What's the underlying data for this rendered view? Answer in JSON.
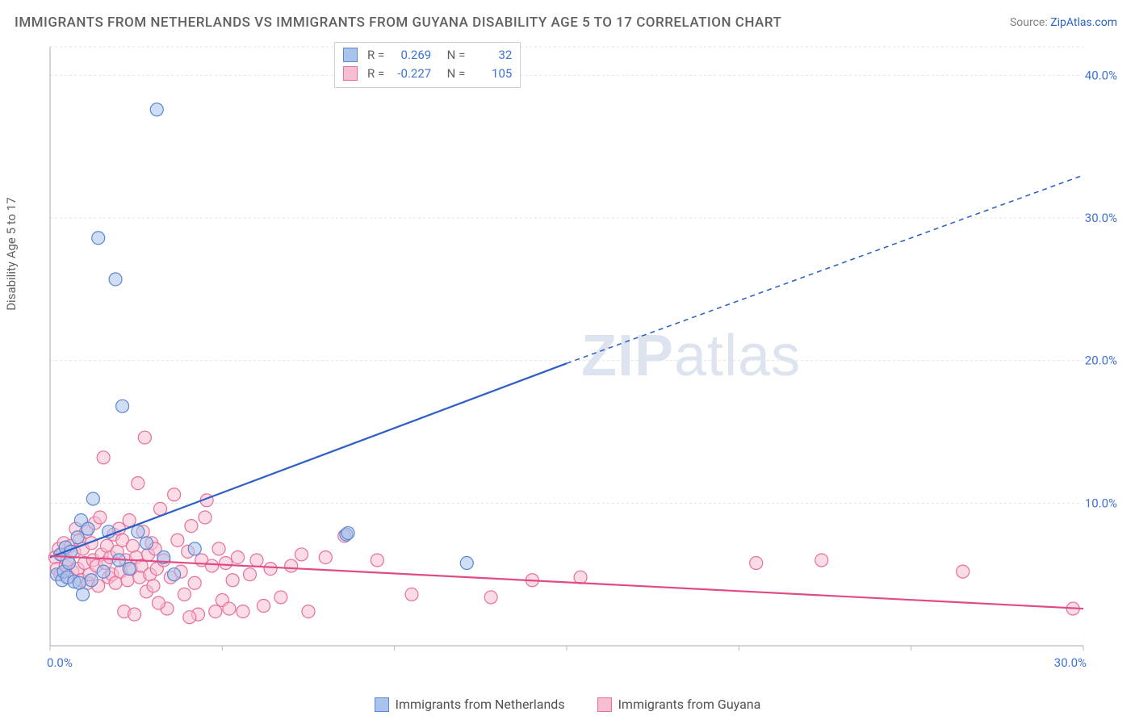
{
  "title": "IMMIGRANTS FROM NETHERLANDS VS IMMIGRANTS FROM GUYANA DISABILITY AGE 5 TO 17 CORRELATION CHART",
  "source": {
    "label": "Source: ",
    "link": "ZipAtlas.com"
  },
  "ylabel": "Disability Age 5 to 17",
  "watermark": {
    "bold": "ZIP",
    "light": "atlas"
  },
  "chart": {
    "type": "scatter",
    "xlim": [
      0,
      30
    ],
    "ylim": [
      0,
      42
    ],
    "x_ticks": [
      0,
      30
    ],
    "x_tick_labels": [
      "0.0%",
      "30.0%"
    ],
    "y_ticks": [
      10,
      20,
      30,
      40
    ],
    "y_tick_labels": [
      "10.0%",
      "20.0%",
      "30.0%",
      "40.0%"
    ],
    "grid_color": "#e3e3e3",
    "axis_color": "#b9b9b9",
    "background_color": "#ffffff",
    "series": [
      {
        "name": "Immigrants from Netherlands",
        "color_fill": "#a8c3ec",
        "color_stroke": "#5b87d1",
        "fill_opacity": 0.55,
        "marker_radius": 8,
        "R": "0.269",
        "N": "32",
        "stat_color": "#3d73d8",
        "trend": {
          "x1": 0,
          "y1": 6.2,
          "x2_solid": 15,
          "y2_solid": 19.8,
          "x2": 30,
          "y2": 33.0,
          "color": "#2b5fc7",
          "width": 2.2
        },
        "points": [
          [
            0.2,
            5.0
          ],
          [
            0.3,
            6.4
          ],
          [
            0.35,
            4.6
          ],
          [
            0.4,
            5.2
          ],
          [
            0.45,
            6.9
          ],
          [
            0.5,
            4.8
          ],
          [
            0.55,
            5.8
          ],
          [
            0.6,
            6.6
          ],
          [
            0.7,
            4.5
          ],
          [
            0.8,
            7.6
          ],
          [
            0.85,
            4.4
          ],
          [
            0.9,
            8.8
          ],
          [
            0.95,
            3.6
          ],
          [
            1.1,
            8.2
          ],
          [
            1.2,
            4.6
          ],
          [
            1.25,
            10.3
          ],
          [
            1.4,
            28.6
          ],
          [
            1.55,
            5.2
          ],
          [
            1.7,
            8.0
          ],
          [
            1.9,
            25.7
          ],
          [
            2.0,
            6.0
          ],
          [
            2.1,
            16.8
          ],
          [
            2.3,
            5.4
          ],
          [
            2.55,
            8.0
          ],
          [
            2.8,
            7.2
          ],
          [
            3.1,
            37.6
          ],
          [
            3.3,
            6.2
          ],
          [
            3.6,
            5.0
          ],
          [
            4.2,
            6.8
          ],
          [
            8.6,
            7.8
          ],
          [
            8.65,
            7.9
          ],
          [
            12.1,
            5.8
          ]
        ]
      },
      {
        "name": "Immigrants from Guyana",
        "color_fill": "#f7bed1",
        "color_stroke": "#e76f9a",
        "fill_opacity": 0.55,
        "marker_radius": 8,
        "R": "-0.227",
        "N": "105",
        "stat_color": "#3d73d8",
        "trend": {
          "x1": 0,
          "y1": 6.3,
          "x2_solid": 30,
          "y2_solid": 2.6,
          "x2": 30,
          "y2": 2.6,
          "color": "#e04b84",
          "width": 2.2
        },
        "points": [
          [
            0.15,
            6.2
          ],
          [
            0.2,
            5.4
          ],
          [
            0.25,
            6.8
          ],
          [
            0.3,
            5.0
          ],
          [
            0.35,
            6.4
          ],
          [
            0.4,
            7.2
          ],
          [
            0.45,
            5.6
          ],
          [
            0.5,
            6.0
          ],
          [
            0.55,
            4.8
          ],
          [
            0.6,
            7.0
          ],
          [
            0.65,
            5.2
          ],
          [
            0.7,
            6.6
          ],
          [
            0.75,
            8.2
          ],
          [
            0.8,
            5.4
          ],
          [
            0.85,
            7.4
          ],
          [
            0.9,
            4.6
          ],
          [
            0.95,
            6.8
          ],
          [
            1.0,
            5.8
          ],
          [
            1.05,
            8.0
          ],
          [
            1.1,
            4.4
          ],
          [
            1.15,
            5.0
          ],
          [
            1.2,
            7.2
          ],
          [
            1.25,
            6.0
          ],
          [
            1.3,
            8.6
          ],
          [
            1.35,
            5.6
          ],
          [
            1.4,
            4.2
          ],
          [
            1.45,
            9.0
          ],
          [
            1.5,
            6.4
          ],
          [
            1.55,
            13.2
          ],
          [
            1.6,
            5.8
          ],
          [
            1.65,
            7.0
          ],
          [
            1.7,
            4.8
          ],
          [
            1.75,
            6.2
          ],
          [
            1.8,
            5.0
          ],
          [
            1.85,
            7.8
          ],
          [
            1.9,
            4.4
          ],
          [
            1.95,
            6.6
          ],
          [
            2.0,
            8.2
          ],
          [
            2.05,
            5.2
          ],
          [
            2.1,
            7.4
          ],
          [
            2.15,
            2.4
          ],
          [
            2.2,
            6.0
          ],
          [
            2.25,
            4.6
          ],
          [
            2.3,
            8.8
          ],
          [
            2.35,
            5.4
          ],
          [
            2.4,
            7.0
          ],
          [
            2.45,
            2.2
          ],
          [
            2.5,
            6.2
          ],
          [
            2.55,
            11.4
          ],
          [
            2.6,
            4.8
          ],
          [
            2.65,
            5.6
          ],
          [
            2.7,
            8.0
          ],
          [
            2.75,
            14.6
          ],
          [
            2.8,
            3.8
          ],
          [
            2.85,
            6.4
          ],
          [
            2.9,
            5.0
          ],
          [
            2.95,
            7.2
          ],
          [
            3.0,
            4.2
          ],
          [
            3.05,
            6.8
          ],
          [
            3.1,
            5.4
          ],
          [
            3.2,
            9.6
          ],
          [
            3.3,
            6.0
          ],
          [
            3.4,
            2.6
          ],
          [
            3.5,
            4.8
          ],
          [
            3.6,
            10.6
          ],
          [
            3.7,
            7.4
          ],
          [
            3.8,
            5.2
          ],
          [
            3.9,
            3.6
          ],
          [
            4.0,
            6.6
          ],
          [
            4.1,
            8.4
          ],
          [
            4.2,
            4.4
          ],
          [
            4.3,
            2.2
          ],
          [
            4.4,
            6.0
          ],
          [
            4.5,
            9.0
          ],
          [
            4.55,
            10.2
          ],
          [
            4.7,
            5.6
          ],
          [
            4.8,
            2.4
          ],
          [
            4.9,
            6.8
          ],
          [
            5.0,
            3.2
          ],
          [
            5.1,
            5.8
          ],
          [
            5.2,
            2.6
          ],
          [
            5.3,
            4.6
          ],
          [
            5.45,
            6.2
          ],
          [
            5.6,
            2.4
          ],
          [
            5.8,
            5.0
          ],
          [
            6.0,
            6.0
          ],
          [
            6.2,
            2.8
          ],
          [
            6.4,
            5.4
          ],
          [
            6.7,
            3.4
          ],
          [
            7.0,
            5.6
          ],
          [
            7.3,
            6.4
          ],
          [
            7.5,
            2.4
          ],
          [
            8.0,
            6.2
          ],
          [
            8.55,
            7.7
          ],
          [
            9.5,
            6.0
          ],
          [
            10.5,
            3.6
          ],
          [
            12.8,
            3.4
          ],
          [
            14.0,
            4.6
          ],
          [
            15.4,
            4.8
          ],
          [
            20.5,
            5.8
          ],
          [
            22.4,
            6.0
          ],
          [
            26.5,
            5.2
          ],
          [
            29.7,
            2.6
          ],
          [
            3.15,
            3.0
          ],
          [
            4.05,
            2.0
          ]
        ]
      }
    ]
  },
  "legend": {
    "items": [
      {
        "label": "Immigrants from Netherlands",
        "fill": "#a8c3ec",
        "stroke": "#5b87d1"
      },
      {
        "label": "Immigrants from Guyana",
        "fill": "#f7bed1",
        "stroke": "#e76f9a"
      }
    ]
  }
}
